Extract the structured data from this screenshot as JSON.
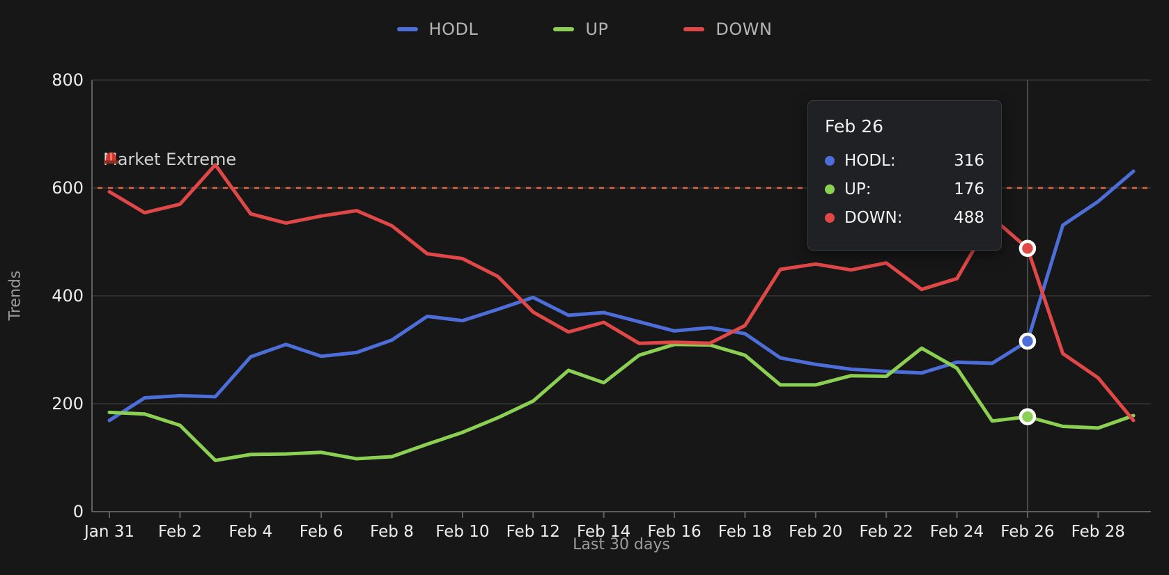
{
  "colors": {
    "background": "#171717",
    "grid": "#373737",
    "axis": "#606060",
    "tick_text": "#ededed",
    "muted_text": "#9b9b9b",
    "legend_text": "#b4b4b4",
    "annotation_text": "#d2d2d2",
    "threshold_line": "#e8643f",
    "crosshair": "#4a4a4c",
    "tooltip_bg": "#1f2124",
    "tooltip_border": "#3a3b3e",
    "tooltip_text": "#f2f2f2",
    "hodl": "#4d6ed9",
    "up": "#8cd053",
    "down": "#e04848"
  },
  "legend": [
    {
      "id": "hodl",
      "label": "HODL",
      "color": "#4d6ed9"
    },
    {
      "id": "up",
      "label": "UP",
      "color": "#8cd053"
    },
    {
      "id": "down",
      "label": "DOWN",
      "color": "#e04848"
    }
  ],
  "chart_data": {
    "type": "line",
    "xlabel": "Last 30 days",
    "ylabel": "Trends",
    "ylim": [
      0,
      800
    ],
    "yticks": [
      0,
      200,
      400,
      600,
      800
    ],
    "xtick_every": 2,
    "grid": true,
    "legend_position": "top",
    "x": [
      "Jan 31",
      "Feb 1",
      "Feb 2",
      "Feb 3",
      "Feb 4",
      "Feb 5",
      "Feb 6",
      "Feb 7",
      "Feb 8",
      "Feb 9",
      "Feb 10",
      "Feb 11",
      "Feb 12",
      "Feb 13",
      "Feb 14",
      "Feb 15",
      "Feb 16",
      "Feb 17",
      "Feb 18",
      "Feb 19",
      "Feb 20",
      "Feb 21",
      "Feb 22",
      "Feb 23",
      "Feb 24",
      "Feb 25",
      "Feb 26",
      "Feb 27",
      "Feb 28",
      "Mar 1"
    ],
    "series": [
      {
        "name": "HODL",
        "color": "#4d6ed9",
        "values": [
          169,
          211,
          215,
          213,
          287,
          310,
          288,
          295,
          318,
          362,
          354,
          375,
          397,
          364,
          369,
          352,
          335,
          341,
          330,
          285,
          273,
          264,
          260,
          257,
          277,
          275,
          316,
          531,
          575,
          631
        ]
      },
      {
        "name": "UP",
        "color": "#8cd053",
        "values": [
          184,
          181,
          160,
          95,
          106,
          107,
          110,
          98,
          102,
          125,
          147,
          174,
          205,
          262,
          239,
          290,
          310,
          309,
          290,
          235,
          235,
          252,
          251,
          303,
          266,
          168,
          176,
          158,
          155,
          178
        ]
      },
      {
        "name": "DOWN",
        "color": "#e04848",
        "values": [
          593,
          554,
          570,
          643,
          552,
          535,
          548,
          558,
          530,
          478,
          469,
          436,
          370,
          333,
          351,
          312,
          314,
          312,
          345,
          449,
          459,
          448,
          461,
          412,
          432,
          545,
          488,
          293,
          248,
          169
        ]
      }
    ],
    "threshold": {
      "label": "Market Extreme",
      "icon": "🚨",
      "value": 600
    },
    "highlight": {
      "x_label": "Feb 26",
      "index": 26
    }
  },
  "tooltip": {
    "title": "Feb 26",
    "rows": [
      {
        "label": "HODL:",
        "value": "316",
        "color": "#4d6ed9"
      },
      {
        "label": "UP:",
        "value": "176",
        "color": "#8cd053"
      },
      {
        "label": "DOWN:",
        "value": "488",
        "color": "#e04848"
      }
    ]
  }
}
